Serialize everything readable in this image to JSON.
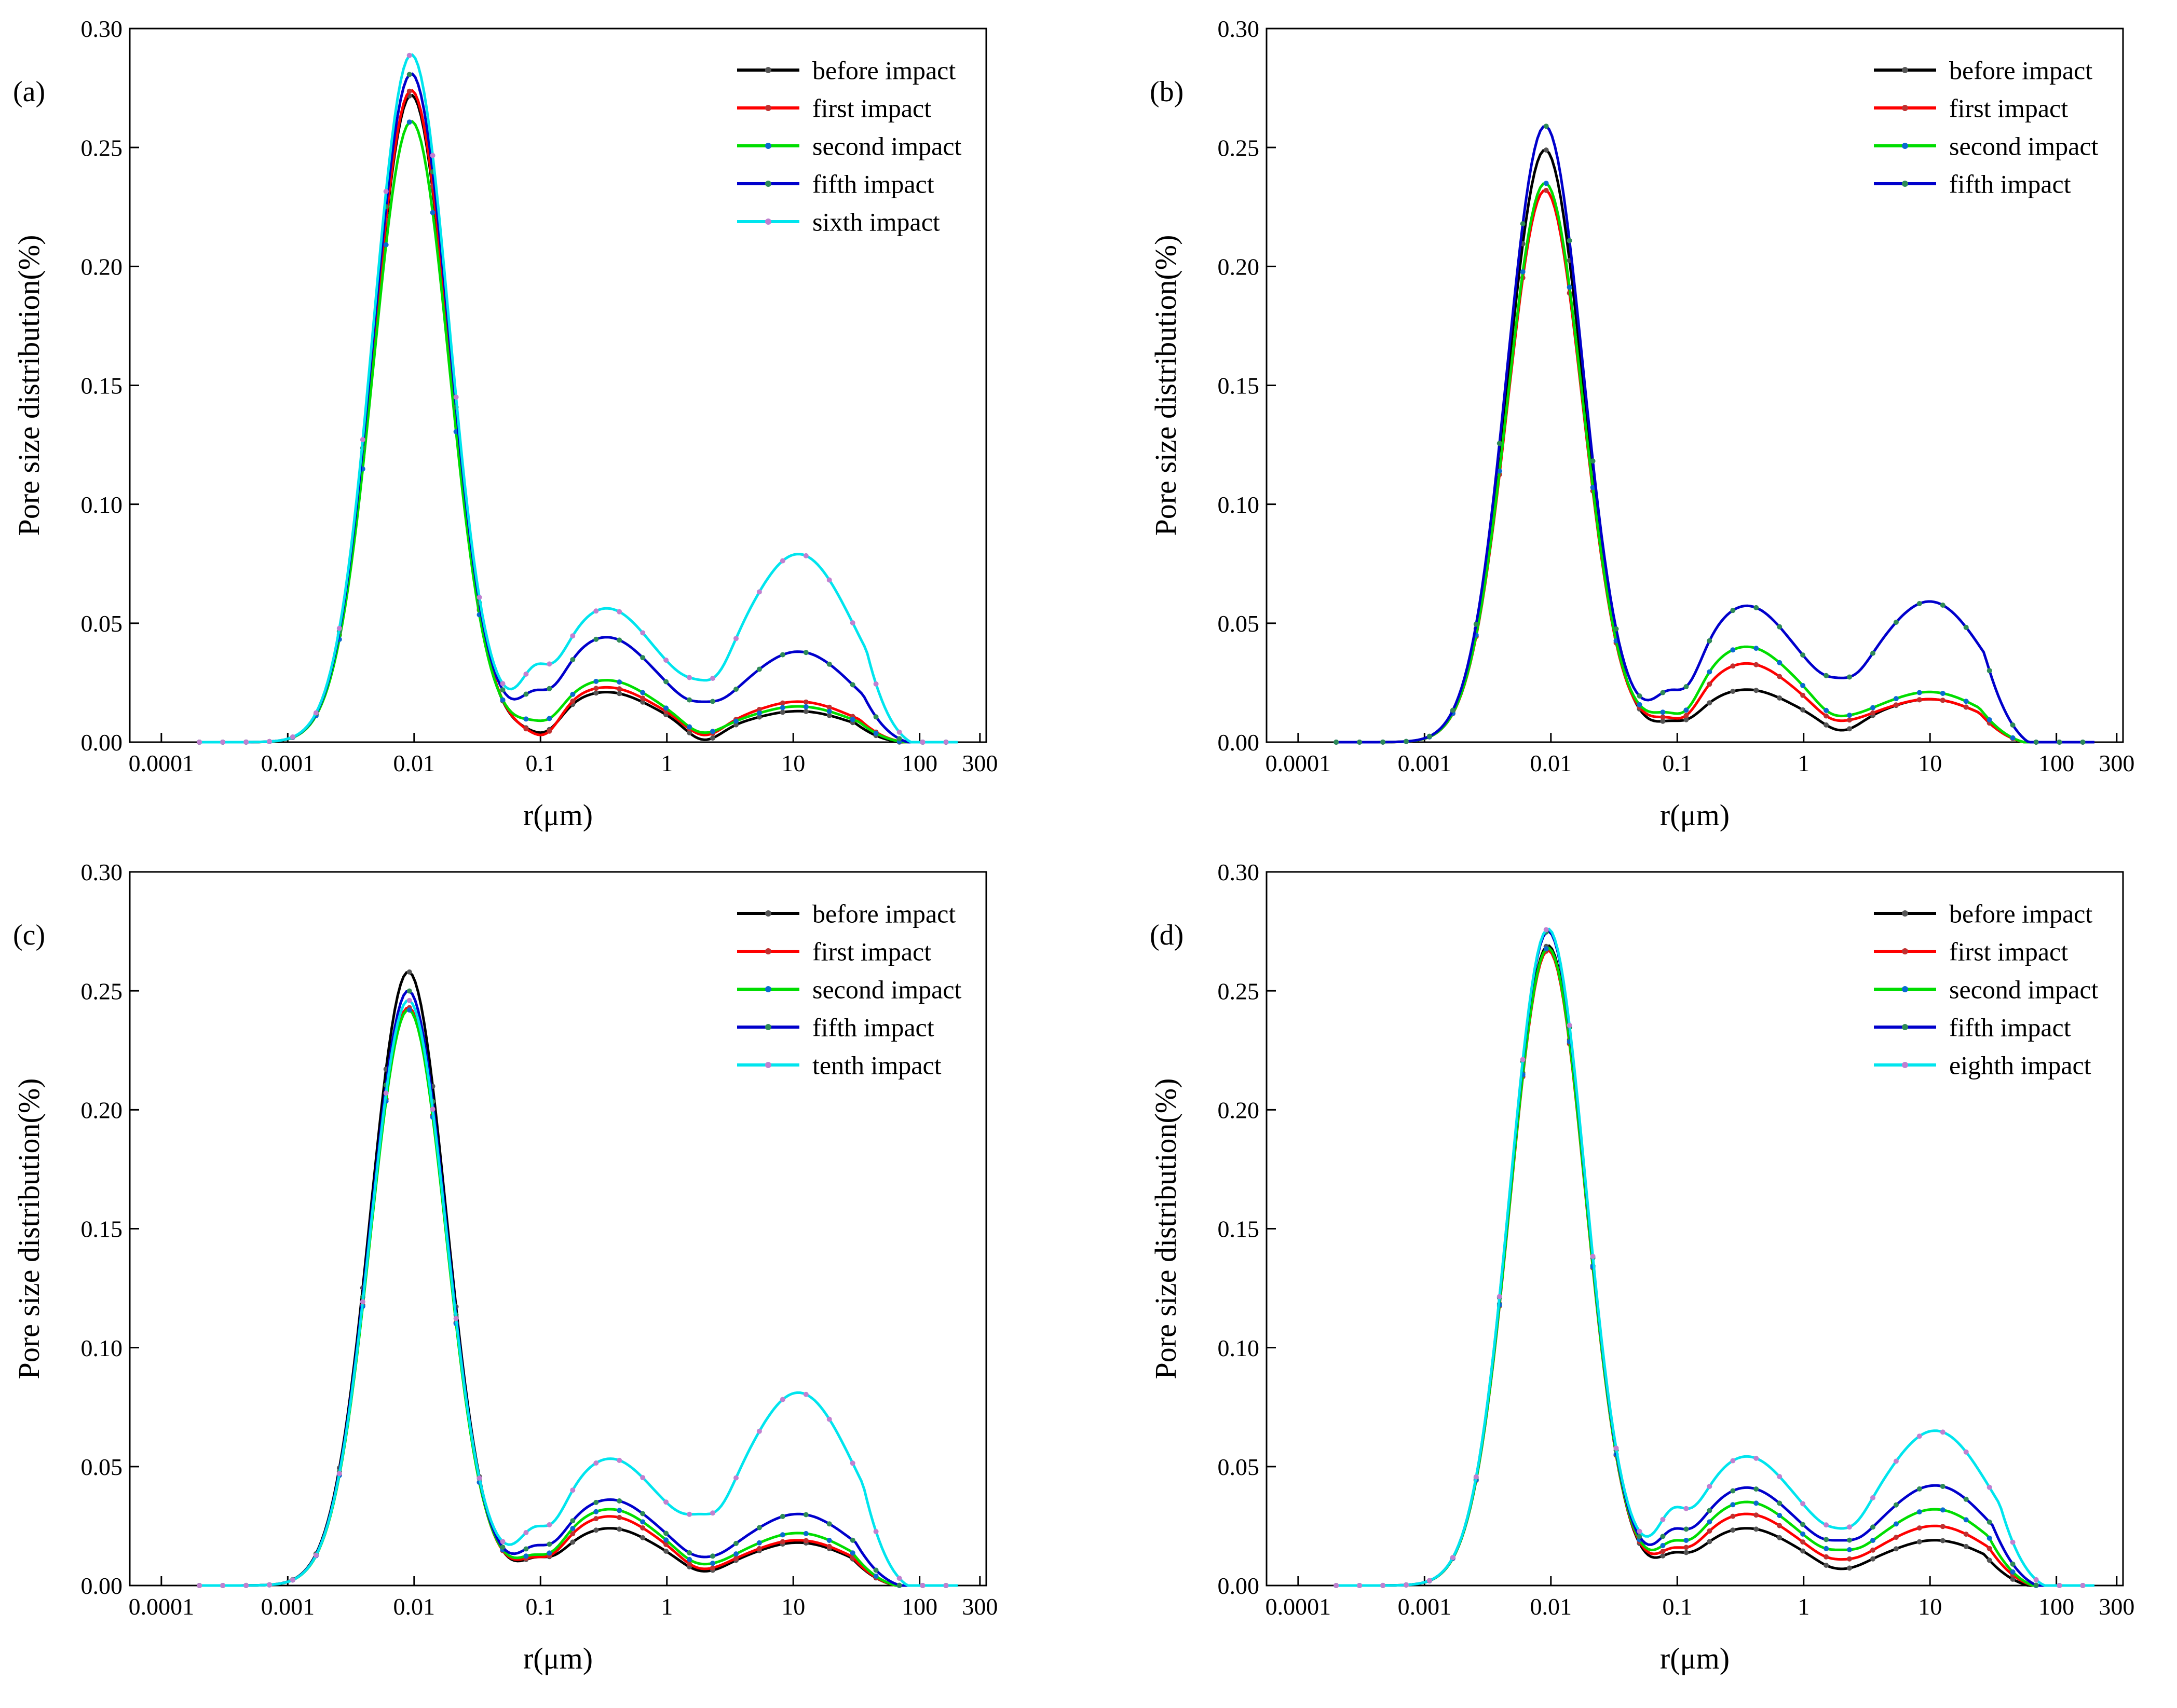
{
  "figure": {
    "description_panels": [
      "(a)",
      "(b)",
      "(c)",
      "(d)"
    ]
  },
  "chart_data": [
    {
      "type": "line",
      "panel_label": "(a)",
      "xlabel": "r(μm)",
      "ylabel": "Pore size distribution(%)",
      "x_scale": "log",
      "xlim": [
        0.0001,
        300
      ],
      "ylim": [
        0,
        0.3
      ],
      "x_ticks": [
        "0.0001",
        "0.001",
        "0.01",
        "0.1",
        "1",
        "10",
        "100",
        "300"
      ],
      "y_ticks": [
        "0.00",
        "0.05",
        "0.10",
        "0.15",
        "0.20",
        "0.25",
        "0.30"
      ],
      "legend_position": "top-right",
      "series": [
        {
          "name": "before impact",
          "color": "#000000",
          "marker": "#555555",
          "peaks": [
            [
              0.0095,
              0.272
            ],
            [
              0.33,
              0.021
            ],
            [
              11,
              0.013
            ]
          ],
          "valleys": [
            [
              0.1,
              0.004
            ],
            [
              2,
              0.001
            ]
          ],
          "end": 70
        },
        {
          "name": "first impact",
          "color": "#ff0000",
          "marker": "#c03030",
          "peaks": [
            [
              0.0095,
              0.274
            ],
            [
              0.33,
              0.023
            ],
            [
              11,
              0.017
            ]
          ],
          "valleys": [
            [
              0.1,
              0.003
            ],
            [
              2,
              0.003
            ]
          ],
          "end": 75
        },
        {
          "name": "second impact",
          "color": "#00dd00",
          "marker": "#0a6ad0",
          "peaks": [
            [
              0.0095,
              0.261
            ],
            [
              0.33,
              0.026
            ],
            [
              11,
              0.015
            ]
          ],
          "valleys": [
            [
              0.1,
              0.009
            ],
            [
              2,
              0.004
            ]
          ],
          "end": 75
        },
        {
          "name": "fifth impact",
          "color": "#0000cc",
          "marker": "#2e8b57",
          "peaks": [
            [
              0.0095,
              0.281
            ],
            [
              0.33,
              0.044
            ],
            [
              11,
              0.038
            ]
          ],
          "valleys": [
            [
              0.1,
              0.022
            ],
            [
              2,
              0.017
            ]
          ],
          "end": 80
        },
        {
          "name": "sixth impact",
          "color": "#00e5ee",
          "marker": "#c080d0",
          "peaks": [
            [
              0.0095,
              0.289
            ],
            [
              0.33,
              0.056
            ],
            [
              11,
              0.079
            ]
          ],
          "valleys": [
            [
              0.1,
              0.033
            ],
            [
              2,
              0.026
            ]
          ],
          "end": 85
        }
      ]
    },
    {
      "type": "line",
      "panel_label": "(b)",
      "xlabel": "r(μm)",
      "ylabel": "Pore size distribution(%)",
      "x_scale": "log",
      "xlim": [
        0.0001,
        300
      ],
      "ylim": [
        0,
        0.3
      ],
      "x_ticks": [
        "0.0001",
        "0.001",
        "0.01",
        "0.1",
        "1",
        "10",
        "100",
        "300"
      ],
      "y_ticks": [
        "0.00",
        "0.05",
        "0.10",
        "0.15",
        "0.20",
        "0.25",
        "0.30"
      ],
      "legend_position": "top-right",
      "series": [
        {
          "name": "before impact",
          "color": "#000000",
          "marker": "#555555",
          "peaks": [
            [
              0.009,
              0.249
            ],
            [
              0.35,
              0.022
            ],
            [
              10,
              0.018
            ]
          ],
          "valleys": [
            [
              0.1,
              0.009
            ],
            [
              2,
              0.005
            ]
          ],
          "end": 55
        },
        {
          "name": "first impact",
          "color": "#ff0000",
          "marker": "#c03030",
          "peaks": [
            [
              0.009,
              0.232
            ],
            [
              0.35,
              0.033
            ],
            [
              10,
              0.018
            ]
          ],
          "valleys": [
            [
              0.1,
              0.01
            ],
            [
              2,
              0.009
            ]
          ],
          "end": 55
        },
        {
          "name": "second impact",
          "color": "#00dd00",
          "marker": "#0a6ad0",
          "peaks": [
            [
              0.009,
              0.235
            ],
            [
              0.35,
              0.04
            ],
            [
              10,
              0.021
            ]
          ],
          "valleys": [
            [
              0.1,
              0.012
            ],
            [
              2,
              0.011
            ]
          ],
          "end": 55
        },
        {
          "name": "fifth impact",
          "color": "#0000cc",
          "marker": "#2e8b57",
          "peaks": [
            [
              0.009,
              0.259
            ],
            [
              0.35,
              0.057
            ],
            [
              10,
              0.059
            ]
          ],
          "valleys": [
            [
              0.1,
              0.022
            ],
            [
              2,
              0.027
            ]
          ],
          "end": 60
        }
      ]
    },
    {
      "type": "line",
      "panel_label": "(c)",
      "xlabel": "r(μm)",
      "ylabel": "Pore size distribution(%)",
      "x_scale": "log",
      "xlim": [
        0.0001,
        300
      ],
      "ylim": [
        0,
        0.3
      ],
      "x_ticks": [
        "0.0001",
        "0.001",
        "0.01",
        "0.1",
        "1",
        "10",
        "100",
        "300"
      ],
      "y_ticks": [
        "0.00",
        "0.05",
        "0.10",
        "0.15",
        "0.20",
        "0.25",
        "0.30"
      ],
      "legend_position": "top-right",
      "series": [
        {
          "name": "before impact",
          "color": "#000000",
          "marker": "#555555",
          "peaks": [
            [
              0.009,
              0.258
            ],
            [
              0.35,
              0.024
            ],
            [
              11,
              0.018
            ]
          ],
          "valleys": [
            [
              0.1,
              0.012
            ],
            [
              2,
              0.006
            ]
          ],
          "end": 65
        },
        {
          "name": "first impact",
          "color": "#ff0000",
          "marker": "#c03030",
          "peaks": [
            [
              0.009,
              0.243
            ],
            [
              0.35,
              0.029
            ],
            [
              11,
              0.019
            ]
          ],
          "valleys": [
            [
              0.1,
              0.012
            ],
            [
              2,
              0.007
            ]
          ],
          "end": 65
        },
        {
          "name": "second impact",
          "color": "#00dd00",
          "marker": "#0a6ad0",
          "peaks": [
            [
              0.009,
              0.242
            ],
            [
              0.35,
              0.032
            ],
            [
              11,
              0.022
            ]
          ],
          "valleys": [
            [
              0.1,
              0.013
            ],
            [
              2,
              0.009
            ]
          ],
          "end": 65
        },
        {
          "name": "fifth impact",
          "color": "#0000cc",
          "marker": "#2e8b57",
          "peaks": [
            [
              0.009,
              0.25
            ],
            [
              0.35,
              0.036
            ],
            [
              11,
              0.03
            ]
          ],
          "valleys": [
            [
              0.1,
              0.017
            ],
            [
              2,
              0.012
            ]
          ],
          "end": 70
        },
        {
          "name": "tenth impact",
          "color": "#00e5ee",
          "marker": "#c080d0",
          "peaks": [
            [
              0.009,
              0.246
            ],
            [
              0.35,
              0.053
            ],
            [
              11,
              0.081
            ]
          ],
          "valleys": [
            [
              0.1,
              0.025
            ],
            [
              2,
              0.03
            ]
          ],
          "end": 80
        }
      ]
    },
    {
      "type": "line",
      "panel_label": "(d)",
      "xlabel": "r(μm)",
      "ylabel": "Pore size distribution(%)",
      "x_scale": "log",
      "xlim": [
        0.0001,
        300
      ],
      "ylim": [
        0,
        0.3
      ],
      "x_ticks": [
        "0.0001",
        "0.001",
        "0.01",
        "0.1",
        "1",
        "10",
        "100",
        "300"
      ],
      "y_ticks": [
        "0.00",
        "0.05",
        "0.10",
        "0.15",
        "0.20",
        "0.25",
        "0.30"
      ],
      "legend_position": "top-right",
      "series": [
        {
          "name": "before impact",
          "color": "#000000",
          "marker": "#555555",
          "peaks": [
            [
              0.0095,
              0.269
            ],
            [
              0.35,
              0.024
            ],
            [
              11,
              0.019
            ]
          ],
          "valleys": [
            [
              0.1,
              0.014
            ],
            [
              2,
              0.007
            ]
          ],
          "end": 60
        },
        {
          "name": "first impact",
          "color": "#ff0000",
          "marker": "#c03030",
          "peaks": [
            [
              0.0095,
              0.267
            ],
            [
              0.35,
              0.03
            ],
            [
              11,
              0.025
            ]
          ],
          "valleys": [
            [
              0.1,
              0.016
            ],
            [
              2,
              0.011
            ]
          ],
          "end": 65
        },
        {
          "name": "second impact",
          "color": "#00dd00",
          "marker": "#0a6ad0",
          "peaks": [
            [
              0.0095,
              0.268
            ],
            [
              0.35,
              0.035
            ],
            [
              11,
              0.032
            ]
          ],
          "valleys": [
            [
              0.1,
              0.019
            ],
            [
              2,
              0.015
            ]
          ],
          "end": 65
        },
        {
          "name": "fifth impact",
          "color": "#0000cc",
          "marker": "#2e8b57",
          "peaks": [
            [
              0.0095,
              0.275
            ],
            [
              0.35,
              0.041
            ],
            [
              11,
              0.042
            ]
          ],
          "valleys": [
            [
              0.1,
              0.024
            ],
            [
              2,
              0.019
            ]
          ],
          "end": 70
        },
        {
          "name": "eighth impact",
          "color": "#00e5ee",
          "marker": "#c080d0",
          "peaks": [
            [
              0.0095,
              0.276
            ],
            [
              0.35,
              0.054
            ],
            [
              11,
              0.065
            ]
          ],
          "valleys": [
            [
              0.1,
              0.033
            ],
            [
              2,
              0.024
            ]
          ],
          "end": 80
        }
      ]
    }
  ]
}
